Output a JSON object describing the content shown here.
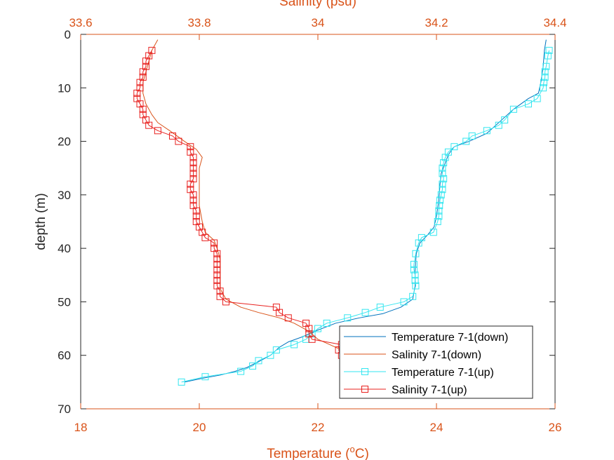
{
  "colors": {
    "axis_bottom_top": "#D95319",
    "axis_left": "#262626",
    "temp_down": "#0072BD",
    "sal_down": "#D95319",
    "temp_up": "#33E6F0",
    "sal_up": "#E8201E"
  },
  "chart_data": {
    "type": "line",
    "orientation": "depth-profile",
    "ylabel": "depth (m)",
    "ylim": [
      0,
      70
    ],
    "yticks": [
      "0",
      "10",
      "20",
      "30",
      "40",
      "50",
      "60",
      "70"
    ],
    "yreversed": true,
    "bottom_axis": {
      "label_main": "Temperature (",
      "label_sup": "o",
      "label_end": "C)",
      "xlim": [
        18,
        26
      ],
      "xticks": [
        "18",
        "20",
        "22",
        "24",
        "26"
      ]
    },
    "top_axis": {
      "label": "Salinity (psu)",
      "xlim": [
        33.6,
        34.4
      ],
      "xticks": [
        "33.6",
        "33.8",
        "34",
        "34.2",
        "34.4"
      ]
    },
    "legend_position": "lower-right",
    "series": [
      {
        "name": "Temperature 7-1(down)",
        "axis": "bottom",
        "marker": "none",
        "color_key": "temp_down",
        "points": [
          [
            25.85,
            1
          ],
          [
            25.82,
            3
          ],
          [
            25.8,
            6
          ],
          [
            25.76,
            9
          ],
          [
            25.72,
            11
          ],
          [
            25.55,
            12
          ],
          [
            25.3,
            14
          ],
          [
            25.1,
            16
          ],
          [
            24.85,
            18.5
          ],
          [
            24.55,
            20
          ],
          [
            24.3,
            21
          ],
          [
            24.2,
            22.5
          ],
          [
            24.15,
            24
          ],
          [
            24.08,
            26
          ],
          [
            24.06,
            28
          ],
          [
            24.04,
            31
          ],
          [
            24.0,
            34
          ],
          [
            23.96,
            36
          ],
          [
            23.85,
            37.5
          ],
          [
            23.72,
            39
          ],
          [
            23.66,
            41
          ],
          [
            23.64,
            44
          ],
          [
            23.64,
            47
          ],
          [
            23.6,
            49.5
          ],
          [
            23.4,
            51
          ],
          [
            23.1,
            52.2
          ],
          [
            22.7,
            53
          ],
          [
            22.3,
            54
          ],
          [
            21.95,
            55.5
          ],
          [
            21.75,
            56.5
          ],
          [
            21.5,
            57.5
          ],
          [
            21.35,
            58.5
          ],
          [
            21.2,
            60
          ],
          [
            21.0,
            61.2
          ],
          [
            20.8,
            62.3
          ],
          [
            20.6,
            63
          ],
          [
            20.35,
            63.7
          ],
          [
            20.05,
            64.3
          ],
          [
            19.75,
            65
          ]
        ]
      },
      {
        "name": "Salinity 7-1(down)",
        "axis": "top",
        "marker": "none",
        "color_key": "sal_down",
        "points": [
          [
            33.73,
            1
          ],
          [
            33.72,
            3
          ],
          [
            33.715,
            5
          ],
          [
            33.71,
            7
          ],
          [
            33.705,
            9
          ],
          [
            33.705,
            11
          ],
          [
            33.71,
            13
          ],
          [
            33.72,
            15
          ],
          [
            33.73,
            16.5
          ],
          [
            33.75,
            18
          ],
          [
            33.775,
            20
          ],
          [
            33.795,
            21.5
          ],
          [
            33.805,
            23
          ],
          [
            33.8,
            25
          ],
          [
            33.8,
            27
          ],
          [
            33.8,
            29
          ],
          [
            33.8,
            32
          ],
          [
            33.805,
            35
          ],
          [
            33.81,
            37
          ],
          [
            33.825,
            38.5
          ],
          [
            33.83,
            40
          ],
          [
            33.835,
            42
          ],
          [
            33.835,
            45
          ],
          [
            33.835,
            47.5
          ],
          [
            33.845,
            49.5
          ],
          [
            33.87,
            51
          ],
          [
            33.9,
            52
          ],
          [
            33.935,
            53
          ],
          [
            33.96,
            54
          ],
          [
            33.985,
            55.5
          ],
          [
            34.0,
            57
          ],
          [
            34.02,
            58
          ],
          [
            34.04,
            59
          ],
          [
            34.07,
            60
          ],
          [
            34.085,
            61
          ],
          [
            34.09,
            62
          ],
          [
            34.12,
            63
          ],
          [
            34.16,
            64
          ],
          [
            34.2,
            65
          ]
        ]
      },
      {
        "name": "Temperature 7-1(up)",
        "axis": "bottom",
        "marker": "square",
        "color_key": "temp_up",
        "points": [
          [
            25.9,
            3
          ],
          [
            25.88,
            4
          ],
          [
            25.85,
            6
          ],
          [
            25.83,
            7
          ],
          [
            25.83,
            8
          ],
          [
            25.81,
            9
          ],
          [
            25.8,
            10
          ],
          [
            25.7,
            12
          ],
          [
            25.55,
            13
          ],
          [
            25.3,
            14
          ],
          [
            25.15,
            16
          ],
          [
            25.05,
            17
          ],
          [
            24.85,
            18
          ],
          [
            24.6,
            19
          ],
          [
            24.5,
            20
          ],
          [
            24.3,
            21
          ],
          [
            24.2,
            22
          ],
          [
            24.15,
            23
          ],
          [
            24.12,
            24
          ],
          [
            24.1,
            25
          ],
          [
            24.1,
            26
          ],
          [
            24.12,
            27
          ],
          [
            24.1,
            28
          ],
          [
            24.1,
            29
          ],
          [
            24.08,
            30
          ],
          [
            24.06,
            31
          ],
          [
            24.05,
            32
          ],
          [
            24.04,
            33
          ],
          [
            24.04,
            34
          ],
          [
            24.02,
            35
          ],
          [
            23.95,
            37
          ],
          [
            23.75,
            38
          ],
          [
            23.7,
            39
          ],
          [
            23.65,
            41
          ],
          [
            23.62,
            43
          ],
          [
            23.62,
            44
          ],
          [
            23.64,
            45
          ],
          [
            23.64,
            46
          ],
          [
            23.65,
            47
          ],
          [
            23.6,
            49
          ],
          [
            23.45,
            50
          ],
          [
            23.05,
            51
          ],
          [
            22.8,
            52
          ],
          [
            22.5,
            53
          ],
          [
            22.15,
            54
          ],
          [
            22.0,
            55
          ],
          [
            21.9,
            56
          ],
          [
            21.8,
            57
          ],
          [
            21.6,
            58
          ],
          [
            21.3,
            59
          ],
          [
            21.2,
            60
          ],
          [
            21.0,
            61
          ],
          [
            20.9,
            62
          ],
          [
            20.7,
            63
          ],
          [
            20.1,
            64
          ],
          [
            19.7,
            65
          ]
        ]
      },
      {
        "name": "Salinity 7-1(up)",
        "axis": "top",
        "marker": "square",
        "color_key": "sal_up",
        "points": [
          [
            33.72,
            3
          ],
          [
            33.715,
            4
          ],
          [
            33.71,
            5
          ],
          [
            33.71,
            6
          ],
          [
            33.705,
            7
          ],
          [
            33.705,
            8
          ],
          [
            33.7,
            9
          ],
          [
            33.7,
            10
          ],
          [
            33.695,
            11
          ],
          [
            33.695,
            12
          ],
          [
            33.7,
            13
          ],
          [
            33.705,
            14
          ],
          [
            33.705,
            15
          ],
          [
            33.71,
            16
          ],
          [
            33.715,
            17
          ],
          [
            33.73,
            18
          ],
          [
            33.755,
            19
          ],
          [
            33.765,
            20
          ],
          [
            33.785,
            21
          ],
          [
            33.785,
            22
          ],
          [
            33.79,
            23
          ],
          [
            33.79,
            24
          ],
          [
            33.79,
            25
          ],
          [
            33.79,
            26
          ],
          [
            33.79,
            27
          ],
          [
            33.785,
            28
          ],
          [
            33.785,
            29
          ],
          [
            33.79,
            30
          ],
          [
            33.79,
            31
          ],
          [
            33.79,
            32
          ],
          [
            33.795,
            33
          ],
          [
            33.795,
            34
          ],
          [
            33.795,
            35
          ],
          [
            33.8,
            36
          ],
          [
            33.805,
            37
          ],
          [
            33.81,
            38
          ],
          [
            33.825,
            39
          ],
          [
            33.825,
            40
          ],
          [
            33.83,
            41
          ],
          [
            33.83,
            42
          ],
          [
            33.83,
            43
          ],
          [
            33.83,
            44
          ],
          [
            33.83,
            45
          ],
          [
            33.83,
            46
          ],
          [
            33.83,
            47
          ],
          [
            33.835,
            48
          ],
          [
            33.835,
            49
          ],
          [
            33.845,
            50
          ],
          [
            33.93,
            51
          ],
          [
            33.935,
            52
          ],
          [
            33.95,
            53
          ],
          [
            33.98,
            54
          ],
          [
            33.985,
            55
          ],
          [
            33.985,
            56
          ],
          [
            33.99,
            57
          ],
          [
            34.04,
            58
          ],
          [
            34.035,
            59
          ],
          [
            34.04,
            60
          ],
          [
            34.06,
            61
          ],
          [
            34.07,
            62
          ],
          [
            34.1,
            63
          ],
          [
            34.14,
            64
          ],
          [
            34.2,
            65
          ]
        ]
      }
    ]
  }
}
